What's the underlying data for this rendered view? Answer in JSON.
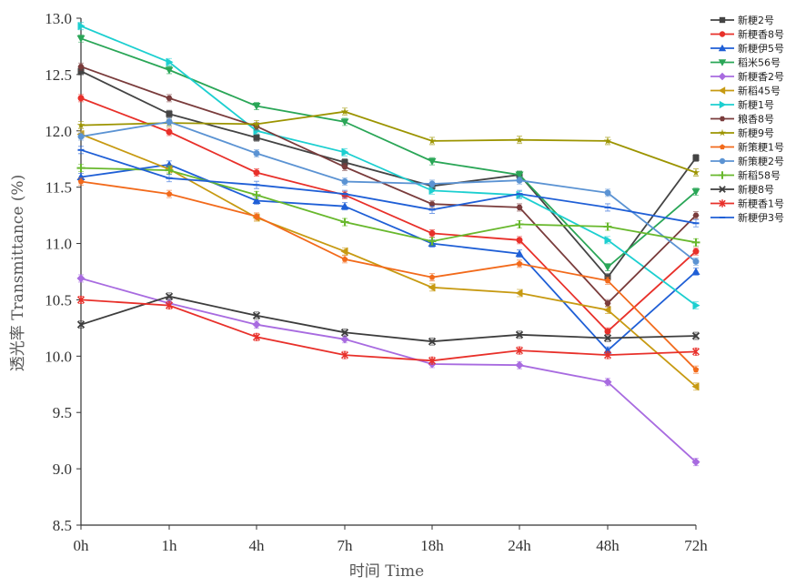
{
  "chart_data": {
    "type": "line",
    "title": "",
    "xlabel": "时间 Time",
    "ylabel": "透光率 Transmittance (%)",
    "ylim": [
      8.5,
      13.0
    ],
    "yticks": [
      "8.5",
      "9.0",
      "9.5",
      "10.0",
      "10.5",
      "11.0",
      "11.5",
      "12.0",
      "12.5",
      "13.0"
    ],
    "categories": [
      "0h",
      "1h",
      "4h",
      "7h",
      "18h",
      "24h",
      "48h",
      "72h"
    ],
    "legend_position": "right",
    "error_bars": true,
    "series": [
      {
        "name": "新粳2号",
        "color": "#444444",
        "marker": "square",
        "values": [
          12.53,
          12.15,
          11.94,
          11.72,
          11.51,
          11.61,
          10.7,
          11.76
        ]
      },
      {
        "name": "新粳香8号",
        "color": "#e8302a",
        "marker": "circle",
        "values": [
          12.29,
          11.99,
          11.63,
          11.43,
          11.09,
          11.03,
          10.22,
          10.93
        ]
      },
      {
        "name": "新粳伊5号",
        "color": "#1f5fd6",
        "marker": "triangle-up",
        "values": [
          11.59,
          11.7,
          11.38,
          11.33,
          11.0,
          10.91,
          10.05,
          10.75
        ]
      },
      {
        "name": "稻米56号",
        "color": "#2aa657",
        "marker": "triangle-down",
        "values": [
          12.82,
          12.54,
          12.22,
          12.08,
          11.73,
          11.61,
          10.79,
          11.46
        ]
      },
      {
        "name": "新粳香2号",
        "color": "#a86be0",
        "marker": "diamond",
        "values": [
          10.69,
          10.47,
          10.28,
          10.15,
          9.93,
          9.92,
          9.77,
          9.06
        ]
      },
      {
        "name": "新稻45号",
        "color": "#c79a12",
        "marker": "triangle-left",
        "values": [
          11.97,
          11.66,
          11.23,
          10.93,
          10.61,
          10.56,
          10.41,
          9.73
        ]
      },
      {
        "name": "新粳1号",
        "color": "#1ccfd0",
        "marker": "triangle-right",
        "values": [
          12.93,
          12.61,
          12.0,
          11.81,
          11.47,
          11.43,
          11.03,
          10.45
        ]
      },
      {
        "name": "粮香8号",
        "color": "#7a3c3c",
        "marker": "hexagon",
        "values": [
          12.57,
          12.29,
          12.04,
          11.68,
          11.35,
          11.32,
          10.47,
          11.25
        ]
      },
      {
        "name": "新粳9号",
        "color": "#9c9400",
        "marker": "star",
        "values": [
          12.05,
          12.07,
          12.06,
          12.17,
          11.91,
          11.92,
          11.91,
          11.63
        ]
      },
      {
        "name": "新策粳1号",
        "color": "#f26a1b",
        "marker": "pentagon",
        "values": [
          11.55,
          11.44,
          11.24,
          10.86,
          10.7,
          10.82,
          10.67,
          9.88
        ]
      },
      {
        "name": "新策粳2号",
        "color": "#5b93d3",
        "marker": "circle",
        "values": [
          11.95,
          12.08,
          11.8,
          11.55,
          11.53,
          11.56,
          11.45,
          10.84
        ]
      },
      {
        "name": "新稻58号",
        "color": "#68b82d",
        "marker": "plus",
        "values": [
          11.67,
          11.65,
          11.43,
          11.19,
          11.02,
          11.17,
          11.15,
          11.01
        ]
      },
      {
        "name": "新粳8号",
        "color": "#3d3d3d",
        "marker": "x",
        "values": [
          10.28,
          10.53,
          10.36,
          10.21,
          10.13,
          10.19,
          10.16,
          10.18
        ]
      },
      {
        "name": "新粳香1号",
        "color": "#e8302a",
        "marker": "asterisk",
        "values": [
          10.5,
          10.45,
          10.17,
          10.01,
          9.96,
          10.05,
          10.01,
          10.04
        ]
      },
      {
        "name": "新粳伊3号",
        "color": "#1f5fd6",
        "marker": "dash",
        "values": [
          11.83,
          11.58,
          11.52,
          11.44,
          11.3,
          11.44,
          11.32,
          11.18
        ]
      }
    ]
  }
}
